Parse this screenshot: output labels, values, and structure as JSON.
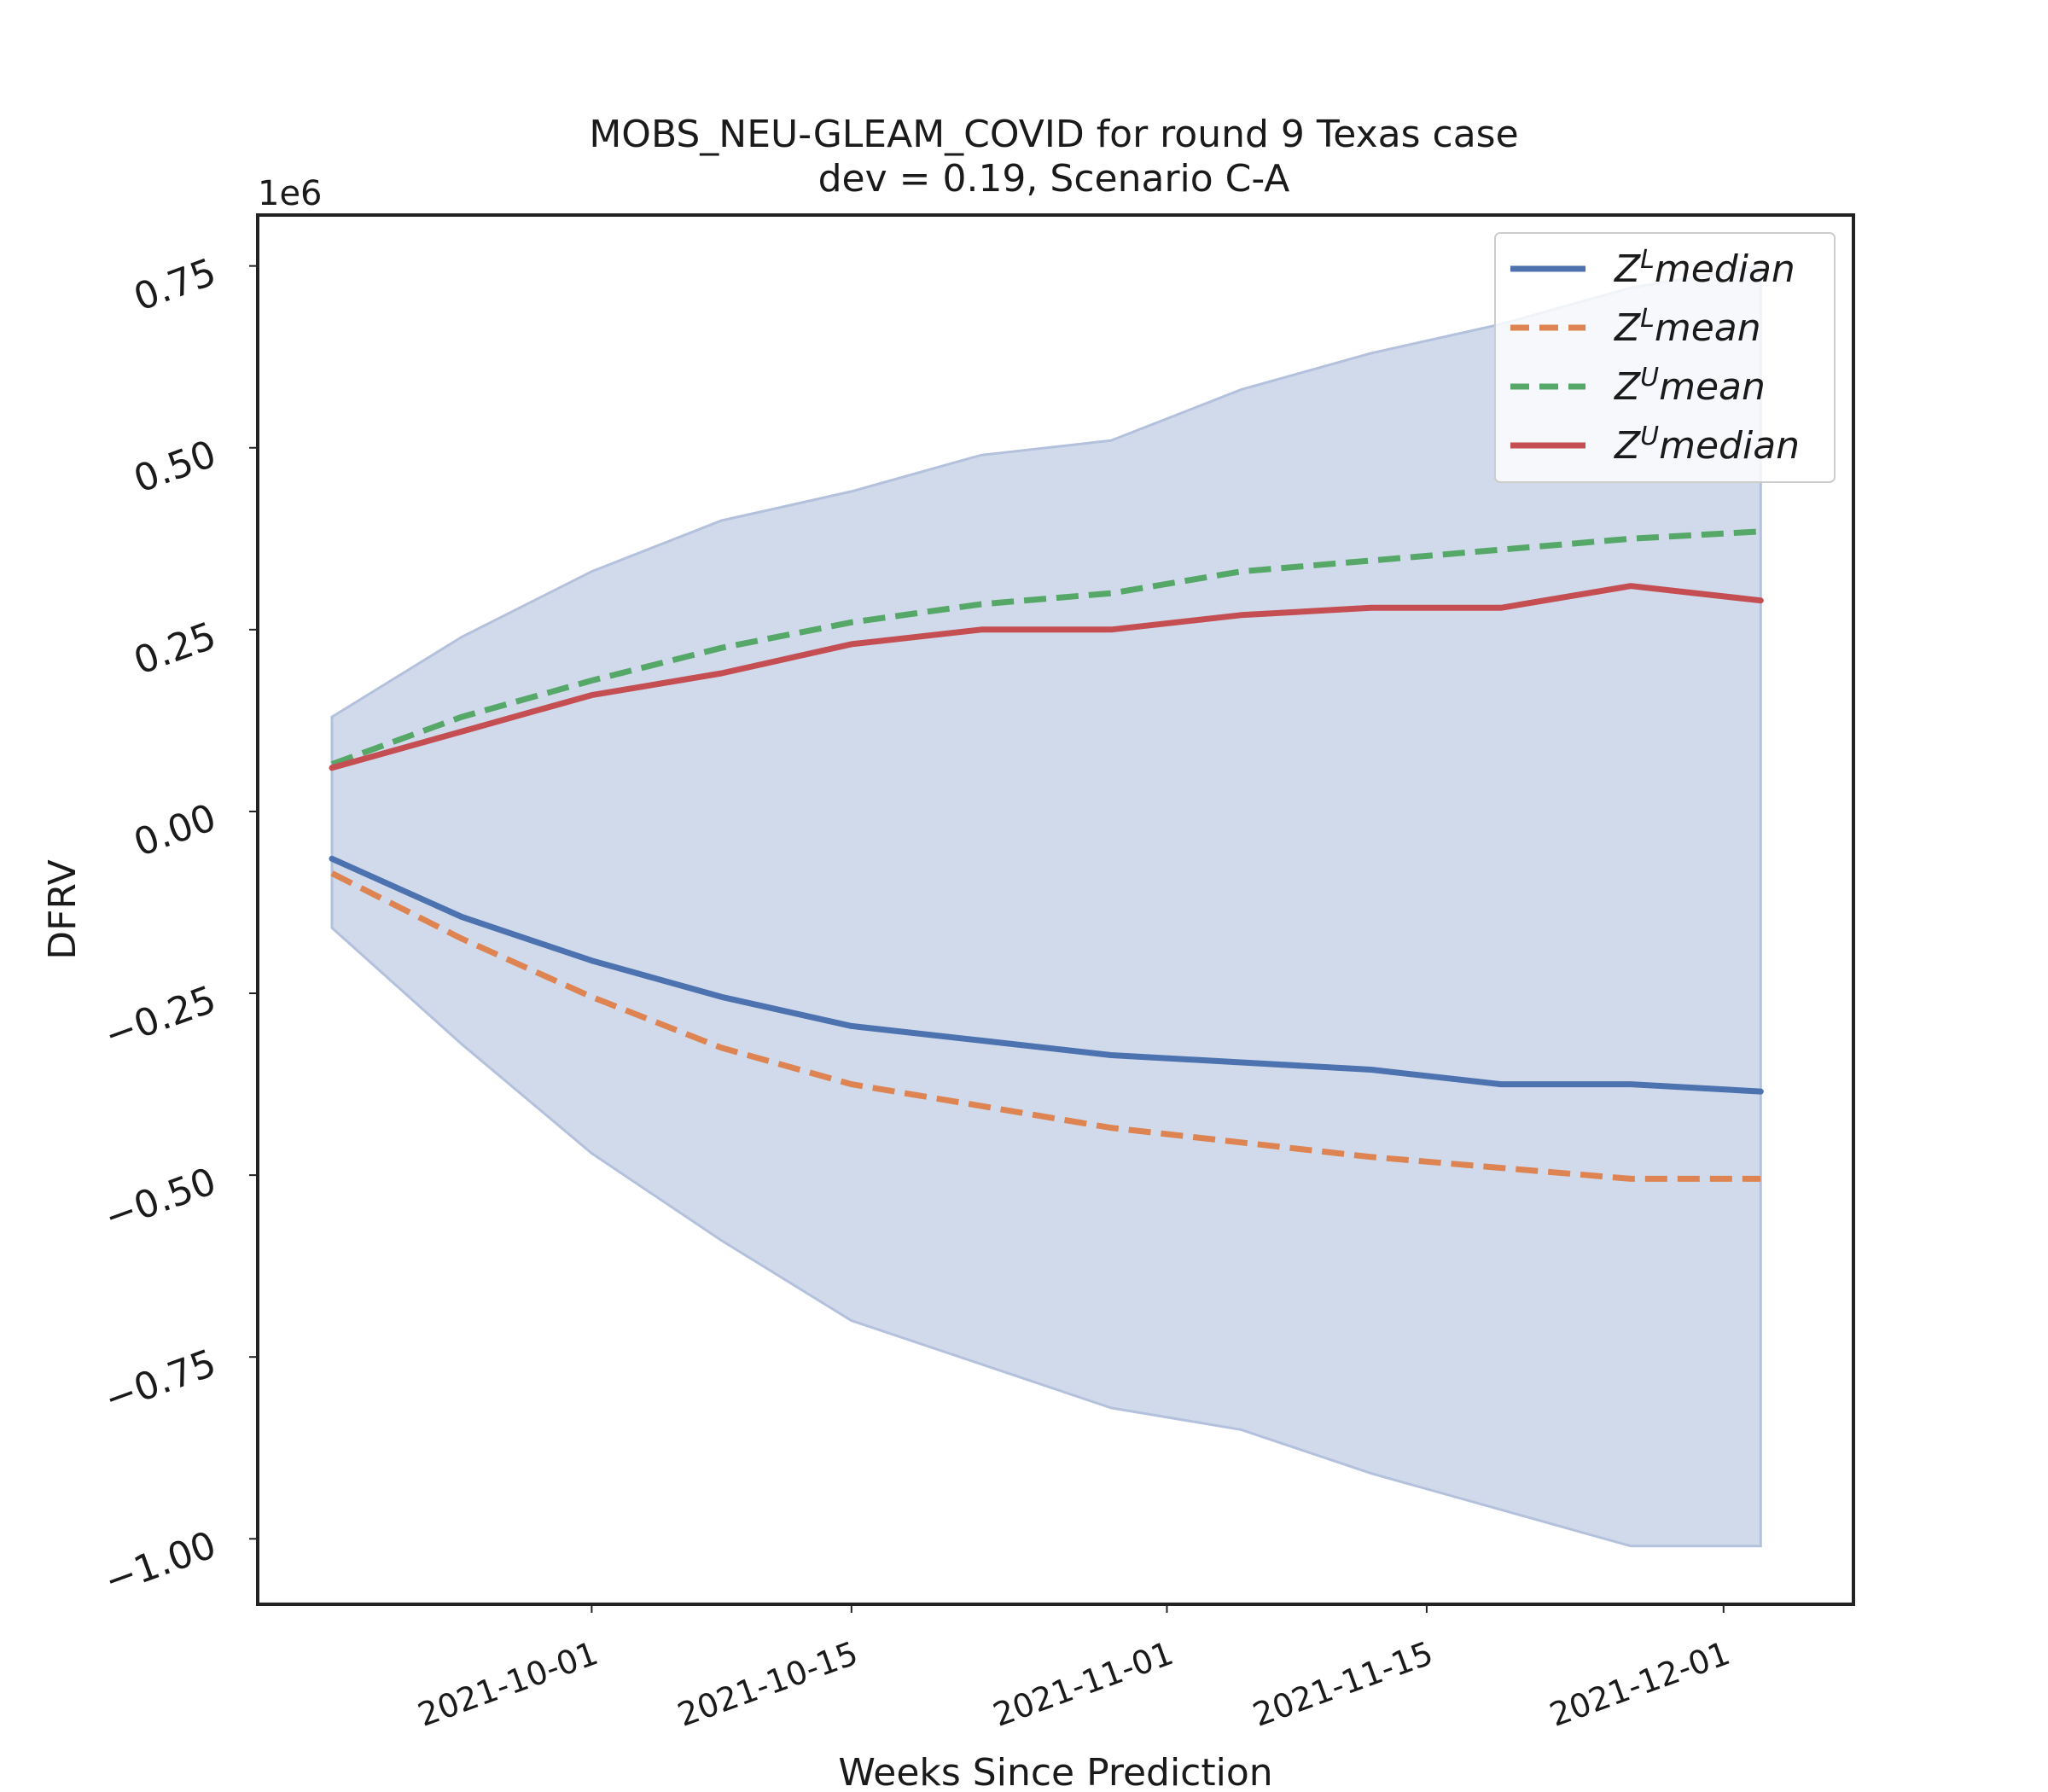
{
  "chart_data": {
    "type": "line",
    "title": "MOBS_NEU-GLEAM_COVID for round 9 Texas case",
    "subtitle": "dev = 0.19, Scenario C-A",
    "xlabel": "Weeks Since Prediction",
    "ylabel": "DFRV",
    "y_scale_label": "1e6",
    "y_multiplier": 1000000,
    "xlim": [
      "2021-09-13",
      "2021-12-08"
    ],
    "ylim": [
      -1.09,
      0.82
    ],
    "x_ticks": [
      "2021-10-01",
      "2021-10-15",
      "2021-11-01",
      "2021-11-15",
      "2021-12-01"
    ],
    "y_ticks": [
      -1.0,
      -0.75,
      -0.5,
      -0.25,
      0.0,
      0.25,
      0.5,
      0.75
    ],
    "y_tick_labels": [
      "−1.00",
      "−0.75",
      "−0.50",
      "−0.25",
      "0.00",
      "0.25",
      "0.50",
      "0.75"
    ],
    "x": [
      "2021-09-17",
      "2021-09-24",
      "2021-10-01",
      "2021-10-08",
      "2021-10-15",
      "2021-10-22",
      "2021-10-29",
      "2021-11-05",
      "2021-11-12",
      "2021-11-19",
      "2021-11-26",
      "2021-12-03"
    ],
    "band": {
      "upper": [
        0.13,
        0.24,
        0.33,
        0.4,
        0.44,
        0.49,
        0.51,
        0.58,
        0.63,
        0.67,
        0.72,
        0.75
      ],
      "lower": [
        -0.16,
        -0.32,
        -0.47,
        -0.59,
        -0.7,
        -0.76,
        -0.82,
        -0.85,
        -0.91,
        -0.96,
        -1.01,
        -1.01
      ],
      "color": "#b3c1dd"
    },
    "series": [
      {
        "name": "$Z^{L} median$",
        "label_base": "Z",
        "label_sup": "L",
        "label_rest": "median",
        "style": "solid",
        "color": "#4c72b0",
        "values": [
          -0.065,
          -0.145,
          -0.205,
          -0.255,
          -0.295,
          -0.315,
          -0.335,
          -0.345,
          -0.355,
          -0.375,
          -0.375,
          -0.385
        ]
      },
      {
        "name": "$Z^{L} mean$",
        "label_base": "Z",
        "label_sup": "L",
        "label_rest": "mean",
        "style": "dashed",
        "color": "#dd8452",
        "values": [
          -0.085,
          -0.175,
          -0.255,
          -0.325,
          -0.375,
          -0.405,
          -0.435,
          -0.455,
          -0.475,
          -0.49,
          -0.505,
          -0.505
        ]
      },
      {
        "name": "$Z^{U} mean$",
        "label_base": "Z",
        "label_sup": "U",
        "label_rest": "mean",
        "style": "dashed",
        "color": "#55a868",
        "values": [
          0.065,
          0.13,
          0.18,
          0.225,
          0.26,
          0.285,
          0.3,
          0.33,
          0.345,
          0.36,
          0.375,
          0.385
        ]
      },
      {
        "name": "$Z^{U} median$",
        "label_base": "Z",
        "label_sup": "U",
        "label_rest": "median",
        "style": "solid",
        "color": "#c44e52",
        "values": [
          0.06,
          0.11,
          0.16,
          0.19,
          0.23,
          0.25,
          0.25,
          0.27,
          0.28,
          0.28,
          0.31,
          0.29
        ]
      }
    ],
    "legend_position": "top-right",
    "grid": false
  }
}
